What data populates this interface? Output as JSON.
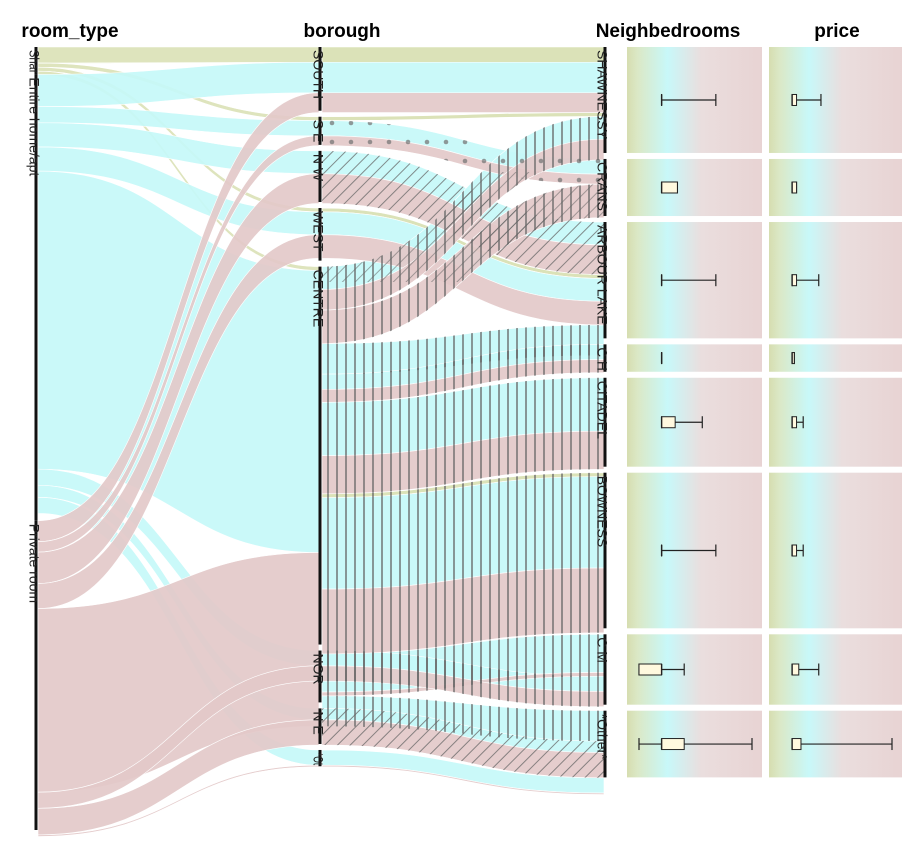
{
  "chart_data": {
    "type": "parallel-sets",
    "dimensions": [
      {
        "name": "room_type",
        "categories": [
          {
            "label": "Shar",
            "share": 0.035
          },
          {
            "label": "Entire home/apt",
            "share": 0.57
          },
          {
            "label": "Private room",
            "share": 0.395
          }
        ]
      },
      {
        "name": "borough",
        "categories": [
          {
            "label": "SOUTH",
            "share": 0.086
          },
          {
            "label": "S E",
            "share": 0.038
          },
          {
            "label": "N W",
            "share": 0.069
          },
          {
            "label": "WEST",
            "share": 0.071
          },
          {
            "label": "CENTRE",
            "share": 0.51
          },
          {
            "label": "NOR",
            "share": 0.07
          },
          {
            "label": "N E",
            "share": 0.048
          },
          {
            "label": "*Ot",
            "share": 0.022
          }
        ]
      },
      {
        "name": "Neighbedrooms",
        "categories": [
          {
            "label": "SHAWNESSY",
            "share": 0.143
          },
          {
            "label": "CRANS",
            "share": 0.077
          },
          {
            "label": "ARBOUR LAKE",
            "share": 0.157
          },
          {
            "label": "C H",
            "share": 0.037
          },
          {
            "label": "CITADEL",
            "share": 0.12
          },
          {
            "label": "BOWNESS",
            "share": 0.21
          },
          {
            "label": "C M",
            "share": 0.095
          },
          {
            "label": "*Other*",
            "share": 0.09
          }
        ]
      }
    ],
    "series": [
      {
        "name": "Shar",
        "color": "#d8dfb2"
      },
      {
        "name": "Entire home/apt",
        "color": "#c6f8f9"
      },
      {
        "name": "Private room",
        "color": "#e3c9c9"
      }
    ],
    "flows": [
      {
        "rt": 0,
        "b": 0,
        "n": 0,
        "v": 0.02
      },
      {
        "rt": 0,
        "b": 1,
        "n": 0,
        "v": 0.005
      },
      {
        "rt": 0,
        "b": 3,
        "n": 2,
        "v": 0.005
      },
      {
        "rt": 0,
        "b": 4,
        "n": 5,
        "v": 0.005
      },
      {
        "rt": 1,
        "b": 0,
        "n": 0,
        "v": 0.04
      },
      {
        "rt": 1,
        "b": 1,
        "n": 1,
        "v": 0.02
      },
      {
        "rt": 1,
        "b": 2,
        "n": 2,
        "v": 0.03
      },
      {
        "rt": 1,
        "b": 3,
        "n": 2,
        "v": 0.03
      },
      {
        "rt": 1,
        "b": 4,
        "n": 0,
        "v": 0.03
      },
      {
        "rt": 1,
        "b": 4,
        "n": 2,
        "v": 0.04
      },
      {
        "rt": 1,
        "b": 4,
        "n": 3,
        "v": 0.02
      },
      {
        "rt": 1,
        "b": 4,
        "n": 4,
        "v": 0.07
      },
      {
        "rt": 1,
        "b": 4,
        "n": 5,
        "v": 0.12
      },
      {
        "rt": 1,
        "b": 4,
        "n": 6,
        "v": 0.05
      },
      {
        "rt": 1,
        "b": 4,
        "n": 7,
        "v": 0.04
      },
      {
        "rt": 1,
        "b": 5,
        "n": 6,
        "v": 0.02
      },
      {
        "rt": 1,
        "b": 6,
        "n": 7,
        "v": 0.015
      },
      {
        "rt": 1,
        "b": 7,
        "n": 7,
        "v": 0.02
      },
      {
        "rt": 2,
        "b": 0,
        "n": 0,
        "v": 0.026
      },
      {
        "rt": 2,
        "b": 1,
        "n": 1,
        "v": 0.013
      },
      {
        "rt": 2,
        "b": 2,
        "n": 2,
        "v": 0.039
      },
      {
        "rt": 2,
        "b": 3,
        "n": 2,
        "v": 0.031
      },
      {
        "rt": 2,
        "b": 4,
        "n": 0,
        "v": 0.027
      },
      {
        "rt": 2,
        "b": 4,
        "n": 1,
        "v": 0.044
      },
      {
        "rt": 2,
        "b": 4,
        "n": 3,
        "v": 0.017
      },
      {
        "rt": 2,
        "b": 4,
        "n": 4,
        "v": 0.05
      },
      {
        "rt": 2,
        "b": 4,
        "n": 5,
        "v": 0.085
      },
      {
        "rt": 2,
        "b": 4,
        "n": 6,
        "v": 0.005
      },
      {
        "rt": 2,
        "b": 5,
        "n": 6,
        "v": 0.02
      },
      {
        "rt": 2,
        "b": 6,
        "n": 7,
        "v": 0.033
      },
      {
        "rt": 2,
        "b": 7,
        "n": 7,
        "v": 0.002
      }
    ],
    "boxplot_columns": [
      "Neighbedrooms",
      "price"
    ],
    "boxplots": [
      {
        "Neighbedrooms": {
          "min": 0.2,
          "q1": 0.2,
          "median": 0.2,
          "q3": 0.2,
          "max": 0.68
        },
        "price": {
          "min": 0.1,
          "q1": 0.1,
          "median": 0.1,
          "q3": 0.14,
          "max": 0.36
        }
      },
      {
        "Neighbedrooms": {
          "min": 0.2,
          "q1": 0.2,
          "median": 0.2,
          "q3": 0.34,
          "max": 0.34
        },
        "price": {
          "min": 0.1,
          "q1": 0.1,
          "median": 0.1,
          "q3": 0.14,
          "max": 0.14
        }
      },
      {
        "Neighbedrooms": {
          "min": 0.2,
          "q1": 0.2,
          "median": 0.2,
          "q3": 0.2,
          "max": 0.68
        },
        "price": {
          "min": 0.1,
          "q1": 0.1,
          "median": 0.1,
          "q3": 0.14,
          "max": 0.34
        }
      },
      {
        "Neighbedrooms": {
          "min": 0.2,
          "q1": 0.2,
          "median": 0.2,
          "q3": 0.2,
          "max": 0.2
        },
        "price": {
          "min": 0.1,
          "q1": 0.1,
          "median": 0.1,
          "q3": 0.12,
          "max": 0.12
        }
      },
      {
        "Neighbedrooms": {
          "min": 0.2,
          "q1": 0.2,
          "median": 0.2,
          "q3": 0.32,
          "max": 0.56
        },
        "price": {
          "min": 0.1,
          "q1": 0.1,
          "median": 0.1,
          "q3": 0.14,
          "max": 0.2
        }
      },
      {
        "Neighbedrooms": {
          "min": 0.2,
          "q1": 0.2,
          "median": 0.2,
          "q3": 0.2,
          "max": 0.68
        },
        "price": {
          "min": 0.1,
          "q1": 0.1,
          "median": 0.1,
          "q3": 0.14,
          "max": 0.2
        }
      },
      {
        "Neighbedrooms": {
          "min": 0.0,
          "q1": 0.0,
          "median": 0.2,
          "q3": 0.2,
          "max": 0.4
        },
        "price": {
          "min": 0.1,
          "q1": 0.1,
          "median": 0.1,
          "q3": 0.16,
          "max": 0.34
        }
      },
      {
        "Neighbedrooms": {
          "min": 0.0,
          "q1": 0.2,
          "median": 0.2,
          "q3": 0.4,
          "max": 1.0
        },
        "price": {
          "min": 0.1,
          "q1": 0.1,
          "median": 0.1,
          "q3": 0.18,
          "max": 1.0
        }
      }
    ]
  }
}
